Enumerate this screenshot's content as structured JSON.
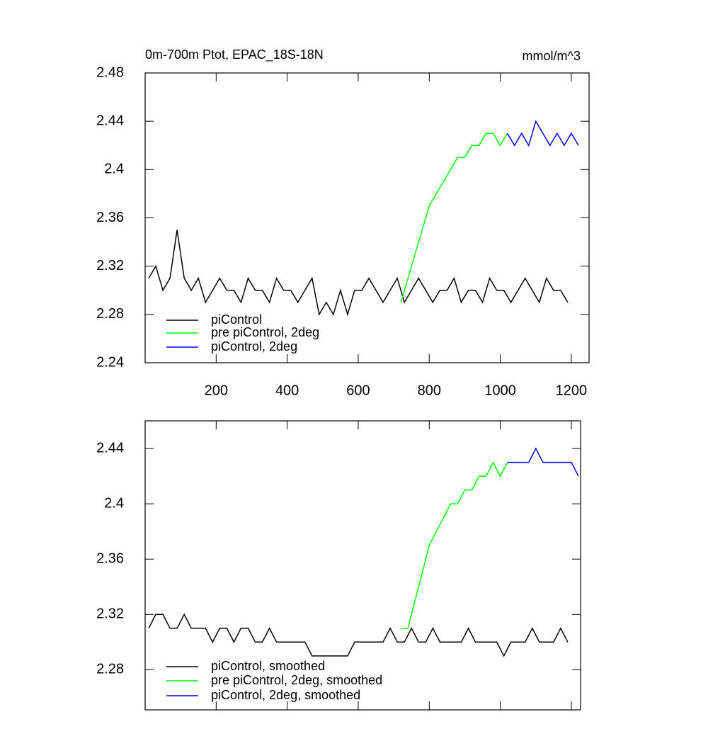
{
  "chart_data": [
    {
      "type": "line",
      "title": "0m-700m Ptot, EPAC_18S-18N",
      "units": "mmol/m^3",
      "xlim": [
        0,
        1250
      ],
      "xticks": [
        200,
        400,
        600,
        800,
        1000,
        1200
      ],
      "xtick_labels": true,
      "ylim": [
        2.24,
        2.48
      ],
      "yticks": [
        2.24,
        2.28,
        2.32,
        2.36,
        2.4,
        2.44,
        2.48
      ],
      "series": [
        {
          "name": "piControl",
          "color": "#000000",
          "x": [
            10,
            30,
            50,
            70,
            90,
            110,
            130,
            150,
            170,
            190,
            210,
            230,
            250,
            270,
            290,
            310,
            330,
            350,
            370,
            390,
            410,
            430,
            450,
            470,
            490,
            510,
            530,
            550,
            570,
            590,
            610,
            630,
            650,
            670,
            690,
            710,
            730,
            750,
            770,
            790,
            810,
            830,
            850,
            870,
            890,
            910,
            930,
            950,
            970,
            990,
            1010,
            1030,
            1050,
            1070,
            1090,
            1110,
            1130,
            1150,
            1170,
            1190
          ],
          "values": [
            2.31,
            2.32,
            2.3,
            2.31,
            2.35,
            2.31,
            2.3,
            2.31,
            2.29,
            2.3,
            2.31,
            2.3,
            2.3,
            2.29,
            2.31,
            2.3,
            2.3,
            2.29,
            2.31,
            2.3,
            2.3,
            2.29,
            2.3,
            2.31,
            2.28,
            2.29,
            2.28,
            2.3,
            2.28,
            2.3,
            2.3,
            2.31,
            2.3,
            2.29,
            2.3,
            2.31,
            2.29,
            2.3,
            2.31,
            2.3,
            2.29,
            2.3,
            2.3,
            2.31,
            2.29,
            2.3,
            2.3,
            2.29,
            2.31,
            2.3,
            2.3,
            2.29,
            2.3,
            2.31,
            2.3,
            2.29,
            2.31,
            2.3,
            2.3,
            2.29
          ]
        },
        {
          "name": "pre piControl, 2deg",
          "color": "#00ff00",
          "x": [
            720,
            740,
            760,
            780,
            800,
            820,
            840,
            860,
            880,
            900,
            920,
            940,
            960,
            980,
            1000,
            1020
          ],
          "values": [
            2.29,
            2.31,
            2.33,
            2.35,
            2.37,
            2.38,
            2.39,
            2.4,
            2.41,
            2.41,
            2.42,
            2.42,
            2.43,
            2.43,
            2.42,
            2.43
          ]
        },
        {
          "name": "piControl, 2deg",
          "color": "#0000ff",
          "x": [
            1020,
            1040,
            1060,
            1080,
            1100,
            1120,
            1140,
            1160,
            1180,
            1200,
            1220
          ],
          "values": [
            2.43,
            2.42,
            2.43,
            2.42,
            2.44,
            2.43,
            2.42,
            2.43,
            2.42,
            2.43,
            2.42
          ]
        }
      ]
    },
    {
      "type": "line",
      "xlim": [
        0,
        1226
      ],
      "xticks": [
        200,
        400,
        600,
        800,
        1000,
        1200
      ],
      "xtick_labels": false,
      "ylim": [
        2.251,
        2.46
      ],
      "yticks": [
        2.28,
        2.32,
        2.36,
        2.4,
        2.44
      ],
      "series": [
        {
          "name": "piControl, smoothed",
          "color": "#000000",
          "x": [
            10,
            30,
            50,
            70,
            90,
            110,
            130,
            150,
            170,
            190,
            210,
            230,
            250,
            270,
            290,
            310,
            330,
            350,
            370,
            390,
            410,
            430,
            450,
            470,
            490,
            510,
            530,
            550,
            570,
            590,
            610,
            630,
            650,
            670,
            690,
            710,
            730,
            750,
            770,
            790,
            810,
            830,
            850,
            870,
            890,
            910,
            930,
            950,
            970,
            990,
            1010,
            1030,
            1050,
            1070,
            1090,
            1110,
            1130,
            1150,
            1170,
            1190
          ],
          "values": [
            2.31,
            2.32,
            2.32,
            2.31,
            2.31,
            2.32,
            2.31,
            2.31,
            2.31,
            2.3,
            2.31,
            2.31,
            2.3,
            2.31,
            2.31,
            2.3,
            2.3,
            2.31,
            2.3,
            2.3,
            2.3,
            2.3,
            2.3,
            2.29,
            2.29,
            2.29,
            2.29,
            2.29,
            2.29,
            2.3,
            2.3,
            2.3,
            2.3,
            2.3,
            2.31,
            2.3,
            2.3,
            2.31,
            2.3,
            2.3,
            2.31,
            2.3,
            2.3,
            2.3,
            2.3,
            2.31,
            2.3,
            2.3,
            2.3,
            2.3,
            2.29,
            2.3,
            2.3,
            2.3,
            2.31,
            2.3,
            2.3,
            2.3,
            2.31,
            2.3
          ]
        },
        {
          "name": "pre piControl, 2deg, smoothed",
          "color": "#00ff00",
          "x": [
            720,
            740,
            760,
            780,
            800,
            820,
            840,
            860,
            880,
            900,
            920,
            940,
            960,
            980,
            1000,
            1020
          ],
          "values": [
            2.31,
            2.31,
            2.33,
            2.35,
            2.37,
            2.38,
            2.39,
            2.4,
            2.4,
            2.41,
            2.41,
            2.42,
            2.42,
            2.43,
            2.42,
            2.43
          ]
        },
        {
          "name": "piControl, 2deg, smoothed",
          "color": "#0000ff",
          "x": [
            1020,
            1040,
            1060,
            1080,
            1100,
            1120,
            1140,
            1160,
            1180,
            1200,
            1220
          ],
          "values": [
            2.43,
            2.43,
            2.43,
            2.43,
            2.44,
            2.43,
            2.43,
            2.43,
            2.43,
            2.43,
            2.42
          ]
        }
      ]
    }
  ]
}
